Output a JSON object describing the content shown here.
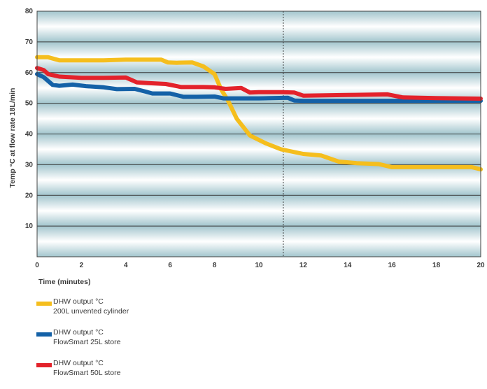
{
  "chart_data": {
    "type": "line",
    "xlabel": "Time (minutes)",
    "ylabel": "Temp °C at flow rate 18L/min",
    "xlim": [
      0,
      20
    ],
    "ylim": [
      0,
      80
    ],
    "x_ticks": [
      "0",
      "2",
      "4",
      "6",
      "8",
      "10",
      "12",
      "14",
      "16",
      "18",
      "20"
    ],
    "y_ticks": [
      "10",
      "20",
      "30",
      "40",
      "50",
      "60",
      "70",
      "80"
    ],
    "grid": "horizontal",
    "marker_line_x": 11.1,
    "series": [
      {
        "name": "DHW output °C",
        "name_line2": "200L unvented cylinder",
        "color": "#f5be1d",
        "x": [
          0,
          0.5,
          1,
          2,
          3,
          4,
          5,
          5.6,
          5.9,
          6.3,
          7,
          7.5,
          8,
          8.3,
          8.6,
          9,
          9.6,
          10.3,
          11,
          12,
          12.8,
          13.6,
          14.4,
          15.4,
          16,
          17,
          18,
          19,
          19.6,
          20
        ],
        "values": [
          65,
          65,
          64,
          64,
          64,
          64.2,
          64.2,
          64.2,
          63.3,
          63.2,
          63.3,
          62,
          59.5,
          54.5,
          51,
          45,
          39.5,
          37,
          35,
          33.5,
          33,
          31,
          30.5,
          30.2,
          29.2,
          29.2,
          29.2,
          29.2,
          29.2,
          28.5
        ]
      },
      {
        "name": "DHW output °C",
        "name_line2": "FlowSmart 25L store",
        "color": "#1461a7",
        "x": [
          0,
          0.3,
          0.7,
          1,
          1.6,
          2.2,
          3,
          3.6,
          4.4,
          4.9,
          5.2,
          6,
          6.6,
          7.2,
          8,
          8.4,
          9,
          10,
          11.3,
          11.6,
          12,
          14,
          16,
          18,
          20
        ],
        "values": [
          59.5,
          58.5,
          56,
          55.7,
          56.1,
          55.6,
          55.2,
          54.6,
          54.7,
          53.8,
          53.2,
          53.2,
          52.1,
          52.1,
          52.2,
          51.6,
          51.6,
          51.6,
          51.8,
          50.9,
          50.8,
          50.8,
          50.8,
          50.8,
          50.8
        ]
      },
      {
        "name": "DHW output °C",
        "name_line2": "FlowSmart 50L store",
        "color": "#e3222b",
        "x": [
          0,
          0.3,
          0.5,
          1,
          2,
          3,
          4,
          4.5,
          5,
          5.8,
          6.5,
          7.5,
          8,
          8.5,
          9.2,
          9.6,
          10,
          11,
          11.6,
          12,
          14,
          15.8,
          16.5,
          18,
          20
        ],
        "values": [
          61.5,
          60.8,
          59.5,
          58.7,
          58.3,
          58.3,
          58.4,
          56.8,
          56.6,
          56.3,
          55.3,
          55.3,
          55.2,
          54.7,
          55,
          53.5,
          53.6,
          53.6,
          53.5,
          52.5,
          52.7,
          52.9,
          51.9,
          51.7,
          51.5
        ]
      }
    ]
  }
}
